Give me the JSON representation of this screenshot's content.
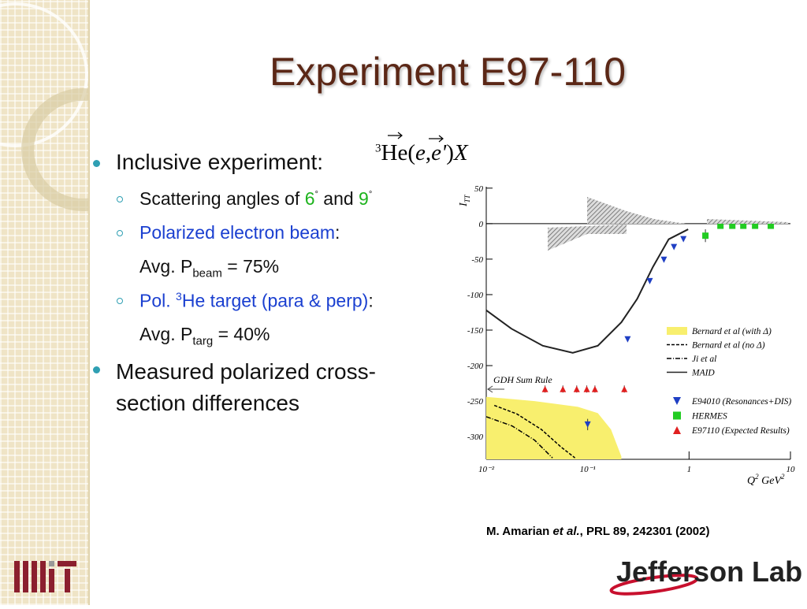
{
  "title": "Experiment E97-110",
  "formula": {
    "parts": [
      "3",
      "He(",
      "e",
      ",",
      "e'",
      ")",
      "X"
    ]
  },
  "bullets": [
    {
      "text": "Inclusive experiment:"
    },
    {
      "sub": [
        {
          "parts": [
            "Scattering angles of ",
            "6",
            "°",
            " and ",
            "9",
            "°"
          ]
        },
        {
          "parts": [
            "Polarized electron beam",
            ":"
          ],
          "detail": [
            "Avg. P",
            "beam",
            " = 75%"
          ]
        },
        {
          "parts": [
            "Pol. ",
            "3",
            "He target (para & perp)",
            ":"
          ],
          "detail": [
            "Avg. P",
            "targ",
            " = 40%"
          ]
        }
      ]
    },
    {
      "text": "Measured polarized cross-section differences"
    }
  ],
  "chart_data": {
    "type": "line",
    "ylabel": {
      "main": "I",
      "sub": "TT"
    },
    "xlabel": {
      "text": "Q",
      "sup": "2",
      "unit": " GeV",
      "unit_sup": "2"
    },
    "annotation": "GDH Sum Rule",
    "xlog": true,
    "xlim": [
      0.01,
      10
    ],
    "xticks": [
      {
        "value": 0.01,
        "label": "10⁻²"
      },
      {
        "value": 0.1,
        "label": "10⁻¹"
      },
      1,
      10
    ],
    "ylim": [
      -332,
      52
    ],
    "yticks": [
      50,
      0,
      -50,
      -100,
      -150,
      -200,
      -250,
      -300
    ],
    "series": [
      {
        "name": "Bernard et al (with Δ)",
        "style": "band",
        "color": "#f8ef6e",
        "x": [
          0.01,
          0.03,
          0.08,
          0.126,
          0.17,
          0.215
        ],
        "values": [
          -244,
          -250,
          -258,
          -267,
          -290,
          -328
        ]
      },
      {
        "name": "Bernard et al (no Δ)",
        "style": "dashed",
        "color": "#000000",
        "x": [
          0.012,
          0.02,
          0.035,
          0.055,
          0.075
        ],
        "values": [
          -256,
          -268,
          -290,
          -315,
          -330
        ]
      },
      {
        "name": "Ji et al",
        "style": "dashdot",
        "color": "#000000",
        "x": [
          0.01,
          0.018,
          0.03,
          0.045
        ],
        "values": [
          -272,
          -285,
          -305,
          -330
        ]
      },
      {
        "name": "MAID",
        "style": "solid",
        "color": "#222222",
        "x": [
          0.01,
          0.0177,
          0.0361,
          0.0713,
          0.126,
          0.215,
          0.308,
          0.44,
          0.63,
          0.98
        ],
        "values": [
          -122,
          -148,
          -172,
          -182,
          -172,
          -139,
          -106,
          -61,
          -22,
          -8
        ]
      },
      {
        "name": "E94010 (Resonances+DIS)",
        "style": "down-triangle",
        "color": "#1f3fc4",
        "x": [
          0.1,
          0.248,
          0.41,
          0.565,
          0.71,
          0.88
        ],
        "values": [
          -283,
          -163,
          -81,
          -51,
          -33,
          -22
        ],
        "errors": [
          8,
          null,
          null,
          null,
          null,
          null
        ]
      },
      {
        "name": "HERMES",
        "style": "square",
        "color": "#22cc22",
        "x": [
          1.45,
          2.04,
          2.67,
          3.43,
          4.48,
          6.4
        ],
        "values": [
          -17,
          -3,
          -3,
          -3,
          -3,
          -3
        ],
        "errors": [
          9,
          null,
          null,
          null,
          null,
          null
        ]
      },
      {
        "name": "E97110 (Expected Results)",
        "style": "up-triangle",
        "color": "#e02020",
        "x": [
          0.038,
          0.057,
          0.078,
          0.098,
          0.118,
          0.23
        ],
        "values": [
          -233,
          -233,
          -233,
          -233,
          -233,
          -233
        ],
        "errors": [
          5,
          5,
          5,
          5,
          5,
          5
        ]
      }
    ]
  },
  "citation": {
    "authors": "M. Amarian ",
    "etal": "et al.",
    "ref": ", PRL 89, 242301 (2002)"
  },
  "logo": "Jefferson Lab"
}
